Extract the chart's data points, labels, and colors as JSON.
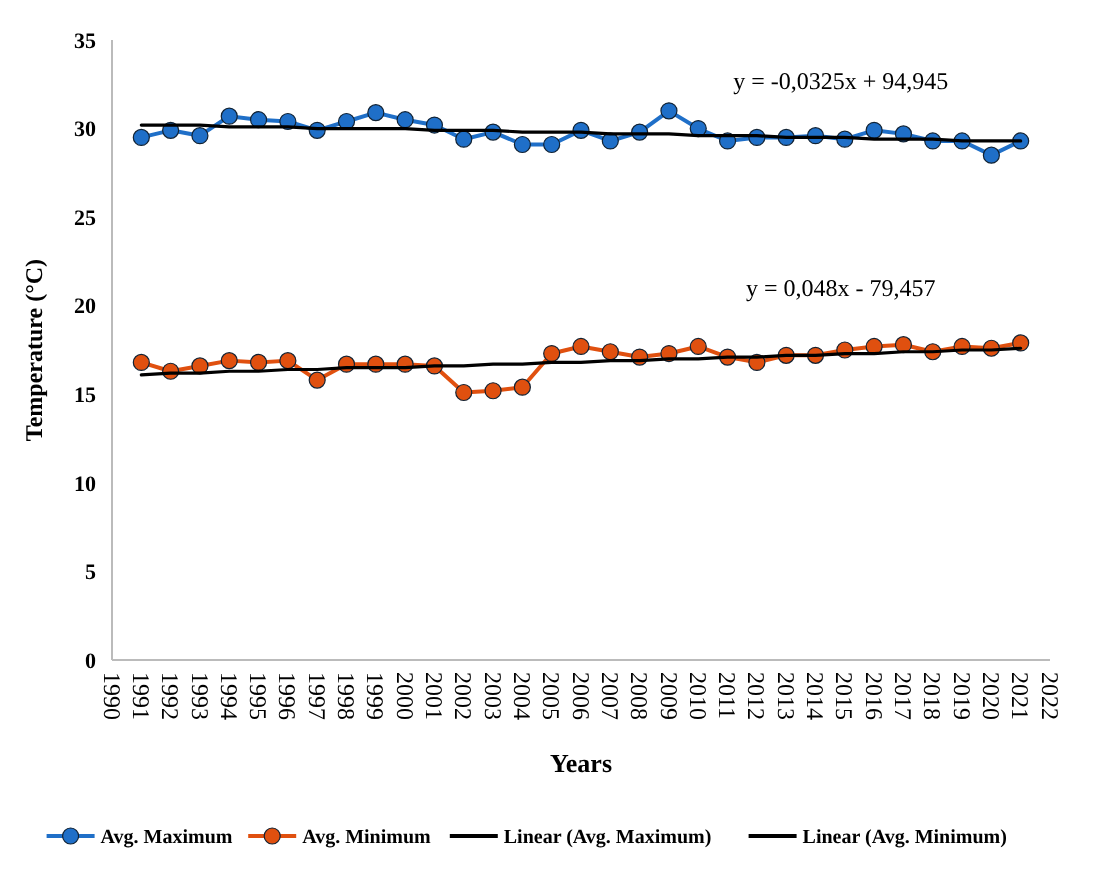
{
  "chart_data": {
    "type": "line",
    "xlabel": "Years",
    "ylabel": "Temperature (°C)",
    "x": [
      1991,
      1992,
      1993,
      1994,
      1995,
      1996,
      1997,
      1998,
      1999,
      2000,
      2001,
      2002,
      2003,
      2004,
      2005,
      2006,
      2007,
      2008,
      2009,
      2010,
      2011,
      2012,
      2013,
      2014,
      2015,
      2016,
      2017,
      2018,
      2019,
      2020,
      2021
    ],
    "series": [
      {
        "name": "Avg. Maximum",
        "color": "#1f6fc8",
        "marker": "circle",
        "values": [
          29.5,
          29.9,
          29.6,
          30.7,
          30.5,
          30.4,
          29.9,
          30.4,
          30.9,
          30.5,
          30.2,
          29.4,
          29.8,
          29.1,
          29.1,
          29.9,
          29.3,
          29.8,
          31.0,
          30.0,
          29.3,
          29.5,
          29.5,
          29.6,
          29.4,
          29.9,
          29.7,
          29.3,
          29.3,
          28.5,
          29.3
        ]
      },
      {
        "name": "Avg. Minimum",
        "color": "#e0500f",
        "marker": "circle",
        "values": [
          16.8,
          16.3,
          16.6,
          16.9,
          16.8,
          16.9,
          15.8,
          16.7,
          16.7,
          16.7,
          16.6,
          15.1,
          15.2,
          15.4,
          17.3,
          17.7,
          17.4,
          17.1,
          17.3,
          17.7,
          17.1,
          16.8,
          17.2,
          17.2,
          17.5,
          17.7,
          17.8,
          17.4,
          17.7,
          17.6,
          17.9
        ]
      },
      {
        "name": "Linear (Avg. Maximum)",
        "color": "#000000",
        "marker": "none",
        "values": [
          30.2,
          30.2,
          30.2,
          30.1,
          30.1,
          30.1,
          30.0,
          30.0,
          30.0,
          30.0,
          29.9,
          29.9,
          29.9,
          29.8,
          29.8,
          29.8,
          29.7,
          29.7,
          29.7,
          29.6,
          29.6,
          29.6,
          29.5,
          29.5,
          29.5,
          29.4,
          29.4,
          29.4,
          29.3,
          29.3,
          29.3
        ]
      },
      {
        "name": "Linear (Avg. Minimum)",
        "color": "#000000",
        "marker": "none",
        "values": [
          16.1,
          16.2,
          16.2,
          16.3,
          16.3,
          16.4,
          16.4,
          16.5,
          16.5,
          16.5,
          16.6,
          16.6,
          16.7,
          16.7,
          16.8,
          16.8,
          16.9,
          16.9,
          17.0,
          17.0,
          17.1,
          17.1,
          17.2,
          17.2,
          17.3,
          17.3,
          17.4,
          17.4,
          17.5,
          17.5,
          17.6
        ]
      }
    ],
    "xlim": [
      1990,
      2022
    ],
    "xticks": [
      1990,
      1991,
      1992,
      1993,
      1994,
      1995,
      1996,
      1997,
      1998,
      1999,
      2000,
      2001,
      2002,
      2003,
      2004,
      2005,
      2006,
      2007,
      2008,
      2009,
      2010,
      2011,
      2012,
      2013,
      2014,
      2015,
      2016,
      2017,
      2018,
      2019,
      2020,
      2021,
      2022
    ],
    "ylim": [
      0,
      35
    ],
    "yticks": [
      0,
      5,
      10,
      15,
      20,
      25,
      30,
      35
    ],
    "annotations": [
      "y = -0,0325x + 94,945",
      "y = 0,048x - 79,457"
    ],
    "legend": "bottom",
    "grid": false
  }
}
